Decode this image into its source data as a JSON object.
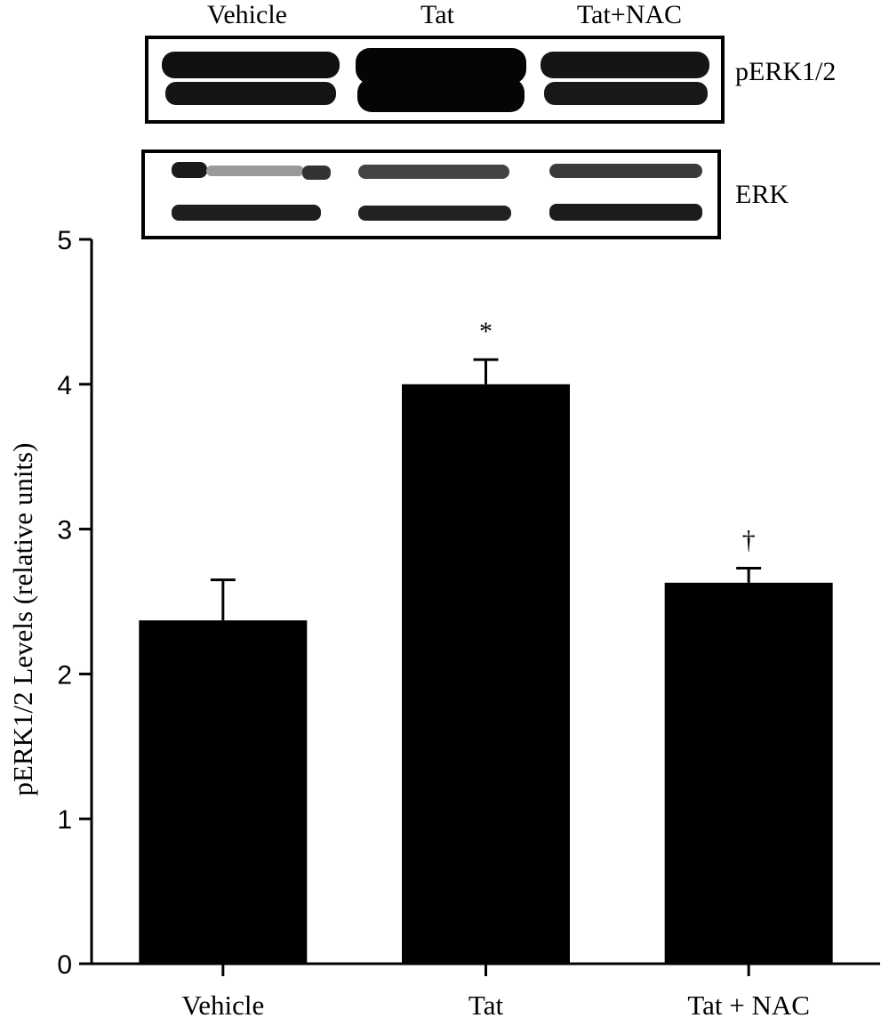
{
  "blot": {
    "lane_labels": [
      "Vehicle",
      "Tat",
      "Tat+NAC"
    ],
    "rows": [
      {
        "label": "pERK1/2"
      },
      {
        "label": "ERK"
      }
    ]
  },
  "chart_data": {
    "type": "bar",
    "categories": [
      "Vehicle",
      "Tat",
      "Tat + NAC"
    ],
    "values": [
      2.37,
      4.0,
      2.63
    ],
    "errors": [
      0.28,
      0.17,
      0.1
    ],
    "annotations": [
      "",
      "*",
      "†"
    ],
    "ylabel": "pERK1/2 Levels (relative units)",
    "xlabel": "",
    "ylim": [
      0,
      5
    ],
    "yticks": [
      0,
      1,
      2,
      3,
      4,
      5
    ],
    "grid": false,
    "bar_color": "#000000"
  }
}
